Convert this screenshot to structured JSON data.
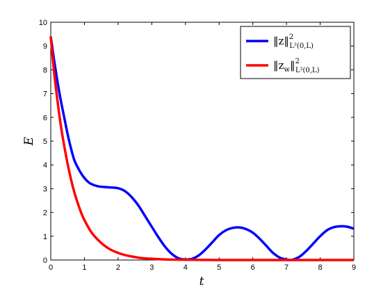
{
  "chart_data": {
    "type": "line",
    "title": "",
    "xlabel": "t",
    "ylabel": "E",
    "xlim": [
      0,
      9
    ],
    "ylim": [
      0,
      10
    ],
    "xticks": [
      "0",
      "1",
      "2",
      "3",
      "4",
      "5",
      "6",
      "7",
      "8",
      "9"
    ],
    "yticks": [
      "0",
      "1",
      "2",
      "3",
      "4",
      "5",
      "6",
      "7",
      "8",
      "9",
      "10"
    ],
    "grid": false,
    "legend_position": "top-right",
    "series": [
      {
        "name": "‖z‖²_{L²(0,L)}",
        "legend_main": "‖z‖",
        "legend_sup": "2",
        "legend_sub": "L²(0,L)",
        "color": "#0000ff",
        "x": [
          0,
          0.1,
          0.2,
          0.3,
          0.4,
          0.5,
          0.6,
          0.7,
          0.8,
          0.9,
          1.0,
          1.1,
          1.2,
          1.4,
          1.6,
          1.8,
          2.0,
          2.2,
          2.4,
          2.6,
          2.8,
          3.0,
          3.2,
          3.4,
          3.6,
          3.8,
          4.0,
          4.1,
          4.2,
          4.4,
          4.6,
          4.8,
          5.0,
          5.2,
          5.4,
          5.6,
          5.8,
          6.0,
          6.2,
          6.4,
          6.6,
          6.8,
          7.0,
          7.1,
          7.2,
          7.4,
          7.6,
          7.8,
          8.0,
          8.2,
          8.4,
          8.6,
          8.8,
          9.0
        ],
        "y": [
          9.4,
          8.4,
          7.5,
          6.7,
          6.0,
          5.3,
          4.7,
          4.2,
          3.9,
          3.65,
          3.45,
          3.3,
          3.2,
          3.1,
          3.07,
          3.05,
          3.02,
          2.9,
          2.65,
          2.3,
          1.85,
          1.4,
          0.95,
          0.55,
          0.25,
          0.07,
          0.02,
          0.03,
          0.05,
          0.2,
          0.45,
          0.75,
          1.05,
          1.25,
          1.35,
          1.37,
          1.3,
          1.15,
          0.9,
          0.6,
          0.3,
          0.1,
          0.02,
          0.0,
          0.02,
          0.15,
          0.4,
          0.7,
          1.0,
          1.25,
          1.38,
          1.42,
          1.4,
          1.32
        ]
      },
      {
        "name": "‖z_w‖²_{L²(0,L)}",
        "legend_main": "‖z",
        "legend_main_sub": "w",
        "legend_main_end": "‖",
        "legend_sup": "2",
        "legend_sub": "L²(0,L)",
        "color": "#ff0000",
        "x": [
          0,
          0.1,
          0.2,
          0.3,
          0.4,
          0.5,
          0.6,
          0.7,
          0.8,
          0.9,
          1.0,
          1.2,
          1.4,
          1.6,
          1.8,
          2.0,
          2.2,
          2.4,
          2.6,
          2.8,
          3.0,
          3.2,
          3.5,
          4.0,
          5.0,
          6.0,
          7.0,
          8.0,
          9.0
        ],
        "y": [
          9.4,
          7.9,
          6.7,
          5.65,
          4.8,
          4.05,
          3.4,
          2.85,
          2.4,
          2.0,
          1.68,
          1.18,
          0.85,
          0.6,
          0.42,
          0.3,
          0.21,
          0.15,
          0.1,
          0.07,
          0.05,
          0.035,
          0.02,
          0.01,
          0.0,
          0.0,
          0.0,
          0.0,
          0.0
        ]
      }
    ]
  }
}
